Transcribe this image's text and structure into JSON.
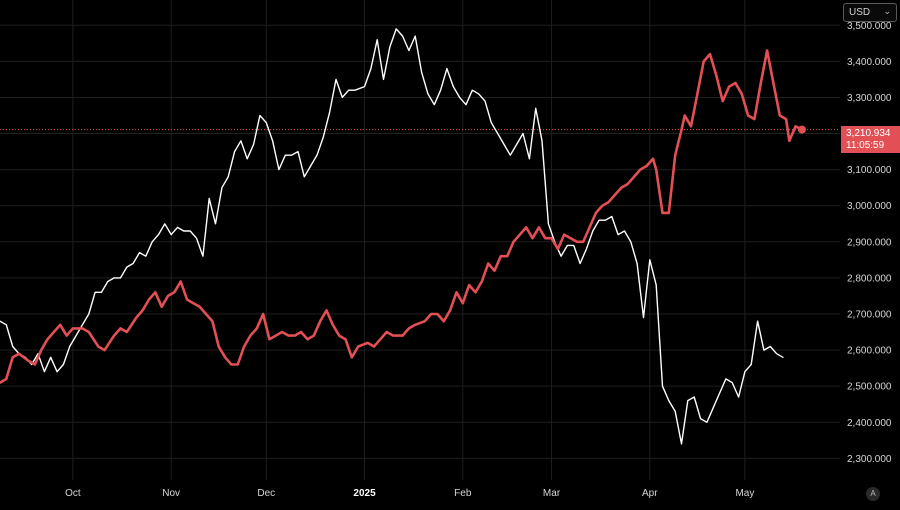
{
  "toolbar": {
    "currency": "USD",
    "scale_mode": "A"
  },
  "price_label": {
    "value": "3,210.934",
    "countdown": "11:05:59"
  },
  "chart_data": {
    "type": "line",
    "title": "",
    "xlabel": "",
    "ylabel": "",
    "ylim": [
      2240000,
      3570000
    ],
    "yticks": [
      2300000,
      2400000,
      2500000,
      2600000,
      2700000,
      2800000,
      2900000,
      3000000,
      3100000,
      3200000,
      3300000,
      3400000,
      3500000
    ],
    "ytick_labels": [
      "2,300.000",
      "2,400.000",
      "2,500.000",
      "2,600.000",
      "2,700.000",
      "2,800.000",
      "2,900.000",
      "3,000.000",
      "3,100.000",
      "3,200.000",
      "3,300.000",
      "3,400.000",
      "3,500.000"
    ],
    "xlim": [
      "2024-09-08",
      "2025-05-31"
    ],
    "xticks": [
      "2024-10-01",
      "2024-11-01",
      "2024-12-01",
      "2025-01-01",
      "2025-02-01",
      "2025-03-01",
      "2025-04-01",
      "2025-05-01"
    ],
    "xtick_labels": [
      "Oct",
      "Nov",
      "Dec",
      "2025",
      "Feb",
      "Mar",
      "Apr",
      "May"
    ],
    "xtick_bold": [
      false,
      false,
      false,
      true,
      false,
      false,
      false,
      false
    ],
    "grid": true,
    "last_value": 3210934,
    "colors": {
      "background": "#000000",
      "grid": "#1e1e1e",
      "red": "#e24f54",
      "white": "#ffffff",
      "axis_text": "#d6d6d6"
    },
    "series": [
      {
        "color": "#e24f54",
        "width": 2.6,
        "points": [
          [
            "2024-09-08",
            2510000
          ],
          [
            "2024-09-10",
            2520000
          ],
          [
            "2024-09-12",
            2580000
          ],
          [
            "2024-09-14",
            2590000
          ],
          [
            "2024-09-17",
            2570000
          ],
          [
            "2024-09-19",
            2560000
          ],
          [
            "2024-09-21",
            2600000
          ],
          [
            "2024-09-23",
            2630000
          ],
          [
            "2024-09-25",
            2650000
          ],
          [
            "2024-09-27",
            2670000
          ],
          [
            "2024-09-29",
            2640000
          ],
          [
            "2024-10-01",
            2660000
          ],
          [
            "2024-10-04",
            2660000
          ],
          [
            "2024-10-06",
            2650000
          ],
          [
            "2024-10-09",
            2610000
          ],
          [
            "2024-10-11",
            2600000
          ],
          [
            "2024-10-14",
            2640000
          ],
          [
            "2024-10-16",
            2660000
          ],
          [
            "2024-10-18",
            2650000
          ],
          [
            "2024-10-21",
            2690000
          ],
          [
            "2024-10-23",
            2710000
          ],
          [
            "2024-10-25",
            2740000
          ],
          [
            "2024-10-27",
            2760000
          ],
          [
            "2024-10-29",
            2720000
          ],
          [
            "2024-10-31",
            2750000
          ],
          [
            "2024-11-02",
            2760000
          ],
          [
            "2024-11-04",
            2790000
          ],
          [
            "2024-11-06",
            2740000
          ],
          [
            "2024-11-08",
            2730000
          ],
          [
            "2024-11-10",
            2720000
          ],
          [
            "2024-11-12",
            2700000
          ],
          [
            "2024-11-14",
            2680000
          ],
          [
            "2024-11-16",
            2610000
          ],
          [
            "2024-11-18",
            2580000
          ],
          [
            "2024-11-20",
            2560000
          ],
          [
            "2024-11-22",
            2560000
          ],
          [
            "2024-11-24",
            2610000
          ],
          [
            "2024-11-26",
            2640000
          ],
          [
            "2024-11-28",
            2660000
          ],
          [
            "2024-11-30",
            2700000
          ],
          [
            "2024-12-02",
            2630000
          ],
          [
            "2024-12-04",
            2640000
          ],
          [
            "2024-12-06",
            2650000
          ],
          [
            "2024-12-08",
            2640000
          ],
          [
            "2024-12-10",
            2640000
          ],
          [
            "2024-12-12",
            2650000
          ],
          [
            "2024-12-14",
            2630000
          ],
          [
            "2024-12-16",
            2640000
          ],
          [
            "2024-12-18",
            2680000
          ],
          [
            "2024-12-20",
            2710000
          ],
          [
            "2024-12-22",
            2670000
          ],
          [
            "2024-12-24",
            2640000
          ],
          [
            "2024-12-26",
            2630000
          ],
          [
            "2024-12-28",
            2580000
          ],
          [
            "2024-12-30",
            2610000
          ],
          [
            "2025-01-02",
            2620000
          ],
          [
            "2025-01-04",
            2610000
          ],
          [
            "2025-01-06",
            2630000
          ],
          [
            "2025-01-08",
            2650000
          ],
          [
            "2025-01-10",
            2640000
          ],
          [
            "2025-01-13",
            2640000
          ],
          [
            "2025-01-15",
            2660000
          ],
          [
            "2025-01-17",
            2670000
          ],
          [
            "2025-01-20",
            2680000
          ],
          [
            "2025-01-22",
            2700000
          ],
          [
            "2025-01-24",
            2700000
          ],
          [
            "2025-01-26",
            2680000
          ],
          [
            "2025-01-28",
            2710000
          ],
          [
            "2025-01-30",
            2760000
          ],
          [
            "2025-02-01",
            2730000
          ],
          [
            "2025-02-03",
            2780000
          ],
          [
            "2025-02-05",
            2760000
          ],
          [
            "2025-02-07",
            2790000
          ],
          [
            "2025-02-09",
            2840000
          ],
          [
            "2025-02-11",
            2820000
          ],
          [
            "2025-02-13",
            2860000
          ],
          [
            "2025-02-15",
            2860000
          ],
          [
            "2025-02-17",
            2900000
          ],
          [
            "2025-02-19",
            2920000
          ],
          [
            "2025-02-21",
            2940000
          ],
          [
            "2025-02-23",
            2910000
          ],
          [
            "2025-02-25",
            2940000
          ],
          [
            "2025-02-27",
            2910000
          ],
          [
            "2025-03-01",
            2910000
          ],
          [
            "2025-03-03",
            2880000
          ],
          [
            "2025-03-05",
            2920000
          ],
          [
            "2025-03-07",
            2910000
          ],
          [
            "2025-03-09",
            2900000
          ],
          [
            "2025-03-11",
            2900000
          ],
          [
            "2025-03-13",
            2940000
          ],
          [
            "2025-03-15",
            2980000
          ],
          [
            "2025-03-17",
            3000000
          ],
          [
            "2025-03-19",
            3010000
          ],
          [
            "2025-03-21",
            3030000
          ],
          [
            "2025-03-23",
            3050000
          ],
          [
            "2025-03-25",
            3060000
          ],
          [
            "2025-03-27",
            3080000
          ],
          [
            "2025-03-29",
            3100000
          ],
          [
            "2025-03-31",
            3110000
          ],
          [
            "2025-04-02",
            3130000
          ],
          [
            "2025-04-03",
            3100000
          ],
          [
            "2025-04-05",
            2980000
          ],
          [
            "2025-04-07",
            2980000
          ],
          [
            "2025-04-09",
            3140000
          ],
          [
            "2025-04-11",
            3210000
          ],
          [
            "2025-04-12",
            3250000
          ],
          [
            "2025-04-14",
            3220000
          ],
          [
            "2025-04-16",
            3310000
          ],
          [
            "2025-04-18",
            3400000
          ],
          [
            "2025-04-20",
            3420000
          ],
          [
            "2025-04-22",
            3360000
          ],
          [
            "2025-04-24",
            3290000
          ],
          [
            "2025-04-26",
            3330000
          ],
          [
            "2025-04-28",
            3340000
          ],
          [
            "2025-04-30",
            3310000
          ],
          [
            "2025-05-02",
            3250000
          ],
          [
            "2025-05-04",
            3240000
          ],
          [
            "2025-05-06",
            3340000
          ],
          [
            "2025-05-08",
            3430000
          ],
          [
            "2025-05-10",
            3340000
          ],
          [
            "2025-05-12",
            3250000
          ],
          [
            "2025-05-14",
            3240000
          ],
          [
            "2025-05-15",
            3180000
          ],
          [
            "2025-05-17",
            3220000
          ],
          [
            "2025-05-19",
            3210934
          ]
        ]
      },
      {
        "color": "#ffffff",
        "width": 1.4,
        "points": [
          [
            "2024-09-08",
            2680000
          ],
          [
            "2024-09-10",
            2670000
          ],
          [
            "2024-09-12",
            2610000
          ],
          [
            "2024-09-14",
            2590000
          ],
          [
            "2024-09-16",
            2580000
          ],
          [
            "2024-09-18",
            2560000
          ],
          [
            "2024-09-20",
            2590000
          ],
          [
            "2024-09-22",
            2540000
          ],
          [
            "2024-09-24",
            2580000
          ],
          [
            "2024-09-26",
            2540000
          ],
          [
            "2024-09-28",
            2560000
          ],
          [
            "2024-09-30",
            2610000
          ],
          [
            "2024-10-02",
            2640000
          ],
          [
            "2024-10-04",
            2670000
          ],
          [
            "2024-10-06",
            2700000
          ],
          [
            "2024-10-08",
            2760000
          ],
          [
            "2024-10-10",
            2760000
          ],
          [
            "2024-10-12",
            2790000
          ],
          [
            "2024-10-14",
            2800000
          ],
          [
            "2024-10-16",
            2800000
          ],
          [
            "2024-10-18",
            2830000
          ],
          [
            "2024-10-20",
            2840000
          ],
          [
            "2024-10-22",
            2870000
          ],
          [
            "2024-10-24",
            2860000
          ],
          [
            "2024-10-26",
            2900000
          ],
          [
            "2024-10-28",
            2920000
          ],
          [
            "2024-10-30",
            2950000
          ],
          [
            "2024-11-01",
            2920000
          ],
          [
            "2024-11-03",
            2940000
          ],
          [
            "2024-11-05",
            2930000
          ],
          [
            "2024-11-07",
            2930000
          ],
          [
            "2024-11-09",
            2910000
          ],
          [
            "2024-11-11",
            2860000
          ],
          [
            "2024-11-13",
            3020000
          ],
          [
            "2024-11-15",
            2950000
          ],
          [
            "2024-11-17",
            3050000
          ],
          [
            "2024-11-19",
            3080000
          ],
          [
            "2024-11-21",
            3150000
          ],
          [
            "2024-11-23",
            3180000
          ],
          [
            "2024-11-25",
            3130000
          ],
          [
            "2024-11-27",
            3170000
          ],
          [
            "2024-11-29",
            3250000
          ],
          [
            "2024-12-01",
            3230000
          ],
          [
            "2024-12-03",
            3180000
          ],
          [
            "2024-12-05",
            3100000
          ],
          [
            "2024-12-07",
            3140000
          ],
          [
            "2024-12-09",
            3140000
          ],
          [
            "2024-12-11",
            3150000
          ],
          [
            "2024-12-13",
            3080000
          ],
          [
            "2024-12-15",
            3110000
          ],
          [
            "2024-12-17",
            3140000
          ],
          [
            "2024-12-19",
            3190000
          ],
          [
            "2024-12-21",
            3260000
          ],
          [
            "2024-12-23",
            3350000
          ],
          [
            "2024-12-25",
            3300000
          ],
          [
            "2024-12-27",
            3320000
          ],
          [
            "2024-12-29",
            3320000
          ],
          [
            "2025-01-01",
            3330000
          ],
          [
            "2025-01-03",
            3380000
          ],
          [
            "2025-01-05",
            3460000
          ],
          [
            "2025-01-07",
            3350000
          ],
          [
            "2025-01-09",
            3440000
          ],
          [
            "2025-01-11",
            3490000
          ],
          [
            "2025-01-13",
            3470000
          ],
          [
            "2025-01-15",
            3430000
          ],
          [
            "2025-01-17",
            3470000
          ],
          [
            "2025-01-19",
            3370000
          ],
          [
            "2025-01-21",
            3310000
          ],
          [
            "2025-01-23",
            3280000
          ],
          [
            "2025-01-25",
            3320000
          ],
          [
            "2025-01-27",
            3380000
          ],
          [
            "2025-01-29",
            3330000
          ],
          [
            "2025-01-31",
            3300000
          ],
          [
            "2025-02-02",
            3280000
          ],
          [
            "2025-02-04",
            3320000
          ],
          [
            "2025-02-06",
            3310000
          ],
          [
            "2025-02-08",
            3290000
          ],
          [
            "2025-02-10",
            3230000
          ],
          [
            "2025-02-12",
            3200000
          ],
          [
            "2025-02-14",
            3170000
          ],
          [
            "2025-02-16",
            3140000
          ],
          [
            "2025-02-18",
            3170000
          ],
          [
            "2025-02-20",
            3200000
          ],
          [
            "2025-02-22",
            3130000
          ],
          [
            "2025-02-24",
            3270000
          ],
          [
            "2025-02-26",
            3180000
          ],
          [
            "2025-02-28",
            2950000
          ],
          [
            "2025-03-02",
            2900000
          ],
          [
            "2025-03-04",
            2860000
          ],
          [
            "2025-03-06",
            2890000
          ],
          [
            "2025-03-08",
            2890000
          ],
          [
            "2025-03-10",
            2840000
          ],
          [
            "2025-03-12",
            2880000
          ],
          [
            "2025-03-14",
            2930000
          ],
          [
            "2025-03-16",
            2960000
          ],
          [
            "2025-03-18",
            2960000
          ],
          [
            "2025-03-20",
            2970000
          ],
          [
            "2025-03-22",
            2920000
          ],
          [
            "2025-03-24",
            2930000
          ],
          [
            "2025-03-26",
            2900000
          ],
          [
            "2025-03-28",
            2840000
          ],
          [
            "2025-03-30",
            2690000
          ],
          [
            "2025-04-01",
            2850000
          ],
          [
            "2025-04-03",
            2780000
          ],
          [
            "2025-04-05",
            2500000
          ],
          [
            "2025-04-07",
            2460000
          ],
          [
            "2025-04-09",
            2430000
          ],
          [
            "2025-04-11",
            2340000
          ],
          [
            "2025-04-13",
            2460000
          ],
          [
            "2025-04-15",
            2470000
          ],
          [
            "2025-04-17",
            2410000
          ],
          [
            "2025-04-19",
            2400000
          ],
          [
            "2025-04-21",
            2440000
          ],
          [
            "2025-04-23",
            2480000
          ],
          [
            "2025-04-25",
            2520000
          ],
          [
            "2025-04-27",
            2510000
          ],
          [
            "2025-04-29",
            2470000
          ],
          [
            "2025-05-01",
            2540000
          ],
          [
            "2025-05-03",
            2560000
          ],
          [
            "2025-05-05",
            2680000
          ],
          [
            "2025-05-07",
            2600000
          ],
          [
            "2025-05-09",
            2610000
          ],
          [
            "2025-05-11",
            2590000
          ],
          [
            "2025-05-13",
            2580000
          ]
        ]
      }
    ]
  }
}
